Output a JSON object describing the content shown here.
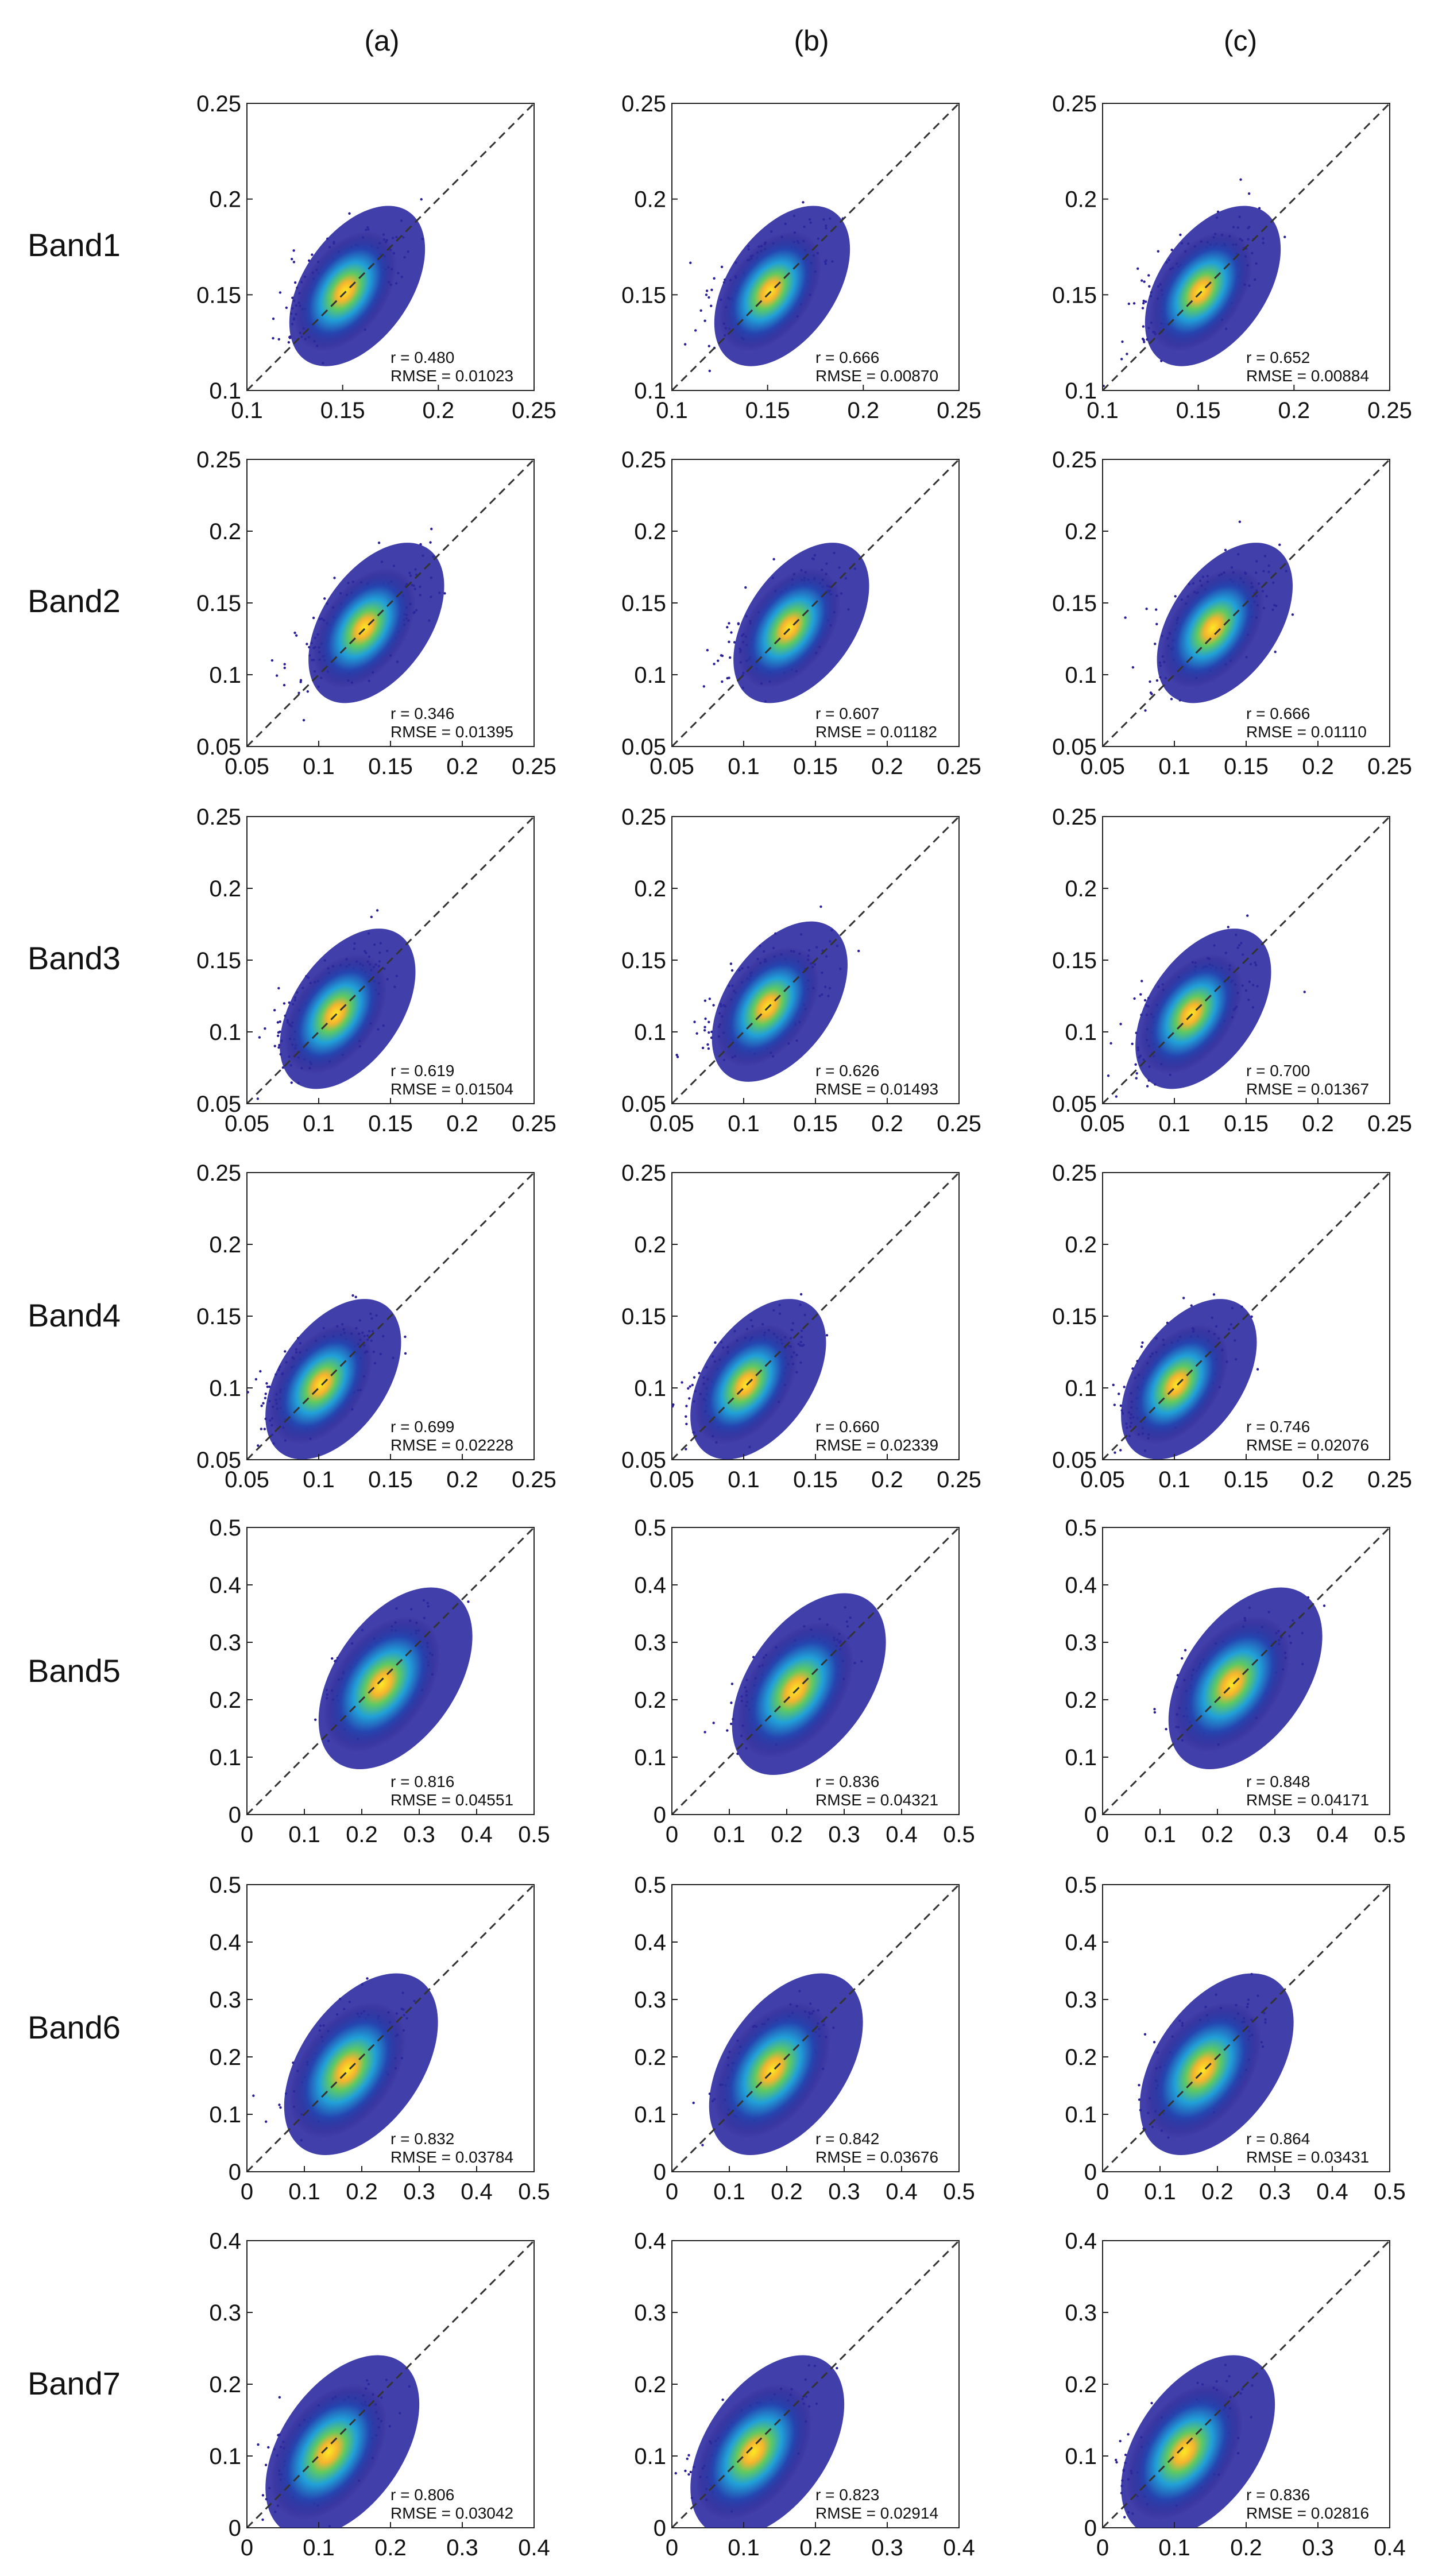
{
  "columns": [
    "(a)",
    "(b)",
    "(c)"
  ],
  "chart_data": [
    {
      "type": "scatter",
      "row": "Band1",
      "column": "(a)",
      "xlim": [
        0.1,
        0.25
      ],
      "ylim": [
        0.1,
        0.25
      ],
      "xticks": [
        "0.1",
        "0.15",
        "0.2",
        "0.25"
      ],
      "yticks": [
        "0.1",
        "0.15",
        "0.2",
        "0.25"
      ],
      "density_peak": [
        0.15,
        0.15
      ],
      "identity_line": true,
      "annotations": [
        "r = 0.480",
        "RMSE = 0.01023"
      ]
    },
    {
      "type": "scatter",
      "row": "Band1",
      "column": "(b)",
      "xlim": [
        0.1,
        0.25
      ],
      "ylim": [
        0.1,
        0.25
      ],
      "xticks": [
        "0.1",
        "0.15",
        "0.2",
        "0.25"
      ],
      "yticks": [
        "0.1",
        "0.15",
        "0.2",
        "0.25"
      ],
      "density_peak": [
        0.15,
        0.15
      ],
      "identity_line": true,
      "annotations": [
        "r = 0.666",
        "RMSE = 0.00870"
      ]
    },
    {
      "type": "scatter",
      "row": "Band1",
      "column": "(c)",
      "xlim": [
        0.1,
        0.25
      ],
      "ylim": [
        0.1,
        0.25
      ],
      "xticks": [
        "0.1",
        "0.15",
        "0.2",
        "0.25"
      ],
      "yticks": [
        "0.1",
        "0.15",
        "0.2",
        "0.25"
      ],
      "density_peak": [
        0.15,
        0.15
      ],
      "identity_line": true,
      "annotations": [
        "r = 0.652",
        "RMSE = 0.00884"
      ]
    },
    {
      "type": "scatter",
      "row": "Band2",
      "column": "(a)",
      "xlim": [
        0.05,
        0.25
      ],
      "ylim": [
        0.05,
        0.25
      ],
      "xticks": [
        "0.05",
        "0.1",
        "0.15",
        "0.2",
        "0.25"
      ],
      "yticks": [
        "0.05",
        "0.1",
        "0.15",
        "0.2",
        "0.25"
      ],
      "density_peak": [
        0.13,
        0.13
      ],
      "identity_line": true,
      "annotations": [
        "r = 0.346",
        "RMSE = 0.01395"
      ]
    },
    {
      "type": "scatter",
      "row": "Band2",
      "column": "(b)",
      "xlim": [
        0.05,
        0.25
      ],
      "ylim": [
        0.05,
        0.25
      ],
      "xticks": [
        "0.05",
        "0.1",
        "0.15",
        "0.2",
        "0.25"
      ],
      "yticks": [
        "0.05",
        "0.1",
        "0.15",
        "0.2",
        "0.25"
      ],
      "density_peak": [
        0.13,
        0.13
      ],
      "identity_line": true,
      "annotations": [
        "r = 0.607",
        "RMSE = 0.01182"
      ]
    },
    {
      "type": "scatter",
      "row": "Band2",
      "column": "(c)",
      "xlim": [
        0.05,
        0.25
      ],
      "ylim": [
        0.05,
        0.25
      ],
      "xticks": [
        "0.05",
        "0.1",
        "0.15",
        "0.2",
        "0.25"
      ],
      "yticks": [
        "0.05",
        "0.1",
        "0.15",
        "0.2",
        "0.25"
      ],
      "density_peak": [
        0.125,
        0.13
      ],
      "identity_line": true,
      "annotations": [
        "r = 0.666",
        "RMSE = 0.01110"
      ]
    },
    {
      "type": "scatter",
      "row": "Band3",
      "column": "(a)",
      "xlim": [
        0.05,
        0.25
      ],
      "ylim": [
        0.05,
        0.25
      ],
      "xticks": [
        "0.05",
        "0.1",
        "0.15",
        "0.2",
        "0.25"
      ],
      "yticks": [
        "0.05",
        "0.1",
        "0.15",
        "0.2",
        "0.25"
      ],
      "density_peak": [
        0.11,
        0.11
      ],
      "identity_line": true,
      "annotations": [
        "r = 0.619",
        "RMSE = 0.01504"
      ]
    },
    {
      "type": "scatter",
      "row": "Band3",
      "column": "(b)",
      "xlim": [
        0.05,
        0.25
      ],
      "ylim": [
        0.05,
        0.25
      ],
      "xticks": [
        "0.05",
        "0.1",
        "0.15",
        "0.2",
        "0.25"
      ],
      "yticks": [
        "0.05",
        "0.1",
        "0.15",
        "0.2",
        "0.25"
      ],
      "density_peak": [
        0.115,
        0.115
      ],
      "identity_line": true,
      "annotations": [
        "r = 0.626",
        "RMSE = 0.01493"
      ]
    },
    {
      "type": "scatter",
      "row": "Band3",
      "column": "(c)",
      "xlim": [
        0.05,
        0.25
      ],
      "ylim": [
        0.05,
        0.25
      ],
      "xticks": [
        "0.05",
        "0.1",
        "0.15",
        "0.2",
        "0.25"
      ],
      "yticks": [
        "0.05",
        "0.1",
        "0.15",
        "0.2",
        "0.25"
      ],
      "density_peak": [
        0.11,
        0.11
      ],
      "identity_line": true,
      "annotations": [
        "r = 0.700",
        "RMSE = 0.01367"
      ]
    },
    {
      "type": "scatter",
      "row": "Band4",
      "column": "(a)",
      "xlim": [
        0.05,
        0.25
      ],
      "ylim": [
        0.05,
        0.25
      ],
      "xticks": [
        "0.05",
        "0.1",
        "0.15",
        "0.2",
        "0.25"
      ],
      "yticks": [
        "0.05",
        "0.1",
        "0.15",
        "0.2",
        "0.25"
      ],
      "density_peak": [
        0.1,
        0.1
      ],
      "identity_line": true,
      "annotations": [
        "r = 0.699",
        "RMSE = 0.02228"
      ]
    },
    {
      "type": "scatter",
      "row": "Band4",
      "column": "(b)",
      "xlim": [
        0.05,
        0.25
      ],
      "ylim": [
        0.05,
        0.25
      ],
      "xticks": [
        "0.05",
        "0.1",
        "0.15",
        "0.2",
        "0.25"
      ],
      "yticks": [
        "0.05",
        "0.1",
        "0.15",
        "0.2",
        "0.25"
      ],
      "density_peak": [
        0.1,
        0.1
      ],
      "identity_line": true,
      "annotations": [
        "r = 0.660",
        "RMSE = 0.02339"
      ]
    },
    {
      "type": "scatter",
      "row": "Band4",
      "column": "(c)",
      "xlim": [
        0.05,
        0.25
      ],
      "ylim": [
        0.05,
        0.25
      ],
      "xticks": [
        "0.05",
        "0.1",
        "0.15",
        "0.2",
        "0.25"
      ],
      "yticks": [
        "0.05",
        "0.1",
        "0.15",
        "0.2",
        "0.25"
      ],
      "density_peak": [
        0.1,
        0.1
      ],
      "identity_line": true,
      "annotations": [
        "r = 0.746",
        "RMSE = 0.02076"
      ]
    },
    {
      "type": "scatter",
      "row": "Band5",
      "column": "(a)",
      "xlim": [
        0,
        0.5
      ],
      "ylim": [
        0,
        0.5
      ],
      "xticks": [
        "0",
        "0.1",
        "0.2",
        "0.3",
        "0.4",
        "0.5"
      ],
      "yticks": [
        "0",
        "0.1",
        "0.2",
        "0.3",
        "0.4",
        "0.5"
      ],
      "density_peak": [
        0.23,
        0.22
      ],
      "identity_line": true,
      "annotations": [
        "r = 0.816",
        "RMSE = 0.04551"
      ]
    },
    {
      "type": "scatter",
      "row": "Band5",
      "column": "(b)",
      "xlim": [
        0,
        0.5
      ],
      "ylim": [
        0,
        0.5
      ],
      "xticks": [
        "0",
        "0.1",
        "0.2",
        "0.3",
        "0.4",
        "0.5"
      ],
      "yticks": [
        "0",
        "0.1",
        "0.2",
        "0.3",
        "0.4",
        "0.5"
      ],
      "density_peak": [
        0.21,
        0.21
      ],
      "identity_line": true,
      "annotations": [
        "r = 0.836",
        "RMSE = 0.04321"
      ]
    },
    {
      "type": "scatter",
      "row": "Band5",
      "column": "(c)",
      "xlim": [
        0,
        0.5
      ],
      "ylim": [
        0,
        0.5
      ],
      "xticks": [
        "0",
        "0.1",
        "0.2",
        "0.3",
        "0.4",
        "0.5"
      ],
      "yticks": [
        "0",
        "0.1",
        "0.2",
        "0.3",
        "0.4",
        "0.5"
      ],
      "density_peak": [
        0.22,
        0.22
      ],
      "identity_line": true,
      "annotations": [
        "r = 0.848",
        "RMSE = 0.04171"
      ]
    },
    {
      "type": "scatter",
      "row": "Band6",
      "column": "(a)",
      "xlim": [
        0,
        0.5
      ],
      "ylim": [
        0,
        0.5
      ],
      "xticks": [
        "0",
        "0.1",
        "0.2",
        "0.3",
        "0.4",
        "0.5"
      ],
      "yticks": [
        "0",
        "0.1",
        "0.2",
        "0.3",
        "0.4",
        "0.5"
      ],
      "density_peak": [
        0.17,
        0.17
      ],
      "identity_line": true,
      "annotations": [
        "r = 0.832",
        "RMSE = 0.03784"
      ]
    },
    {
      "type": "scatter",
      "row": "Band6",
      "column": "(b)",
      "xlim": [
        0,
        0.5
      ],
      "ylim": [
        0,
        0.5
      ],
      "xticks": [
        "0",
        "0.1",
        "0.2",
        "0.3",
        "0.4",
        "0.5"
      ],
      "yticks": [
        "0",
        "0.1",
        "0.2",
        "0.3",
        "0.4",
        "0.5"
      ],
      "density_peak": [
        0.17,
        0.17
      ],
      "identity_line": true,
      "annotations": [
        "r = 0.842",
        "RMSE = 0.03676"
      ]
    },
    {
      "type": "scatter",
      "row": "Band6",
      "column": "(c)",
      "xlim": [
        0,
        0.5
      ],
      "ylim": [
        0,
        0.5
      ],
      "xticks": [
        "0",
        "0.1",
        "0.2",
        "0.3",
        "0.4",
        "0.5"
      ],
      "yticks": [
        "0",
        "0.1",
        "0.2",
        "0.3",
        "0.4",
        "0.5"
      ],
      "density_peak": [
        0.17,
        0.17
      ],
      "identity_line": true,
      "annotations": [
        "r = 0.864",
        "RMSE = 0.03431"
      ]
    },
    {
      "type": "scatter",
      "row": "Band7",
      "column": "(a)",
      "xlim": [
        0,
        0.4
      ],
      "ylim": [
        0,
        0.4
      ],
      "xticks": [
        "0",
        "0.1",
        "0.2",
        "0.3",
        "0.4"
      ],
      "yticks": [
        "0",
        "0.1",
        "0.2",
        "0.3",
        "0.4"
      ],
      "density_peak": [
        0.11,
        0.1
      ],
      "identity_line": true,
      "annotations": [
        "r = 0.806",
        "RMSE = 0.03042"
      ]
    },
    {
      "type": "scatter",
      "row": "Band7",
      "column": "(b)",
      "xlim": [
        0,
        0.4
      ],
      "ylim": [
        0,
        0.4
      ],
      "xticks": [
        "0",
        "0.1",
        "0.2",
        "0.3",
        "0.4"
      ],
      "yticks": [
        "0",
        "0.1",
        "0.2",
        "0.3",
        "0.4"
      ],
      "density_peak": [
        0.11,
        0.1
      ],
      "identity_line": true,
      "annotations": [
        "r = 0.823",
        "RMSE = 0.02914"
      ]
    },
    {
      "type": "scatter",
      "row": "Band7",
      "column": "(c)",
      "xlim": [
        0,
        0.4
      ],
      "ylim": [
        0,
        0.4
      ],
      "xticks": [
        "0",
        "0.1",
        "0.2",
        "0.3",
        "0.4"
      ],
      "yticks": [
        "0",
        "0.1",
        "0.2",
        "0.3",
        "0.4"
      ],
      "density_peak": [
        0.11,
        0.1
      ],
      "identity_line": true,
      "annotations": [
        "r = 0.836",
        "RMSE = 0.02816"
      ]
    }
  ]
}
